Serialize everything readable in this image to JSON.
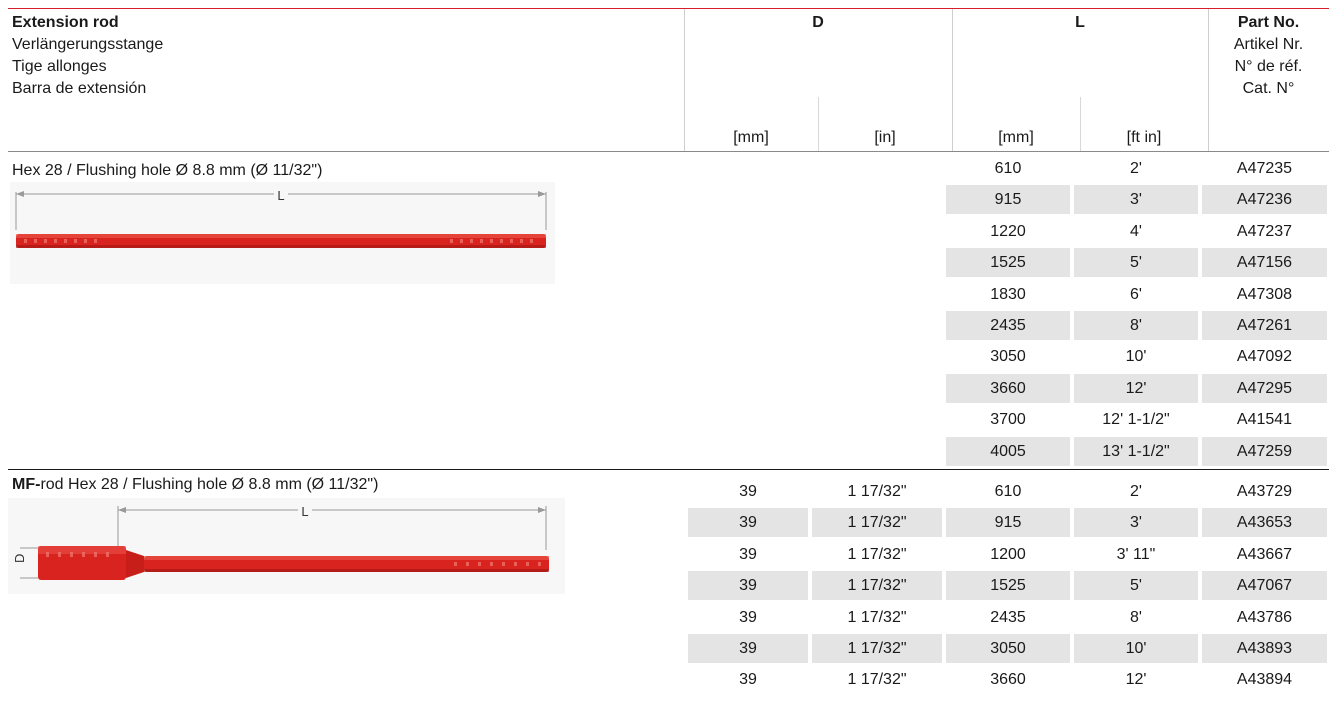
{
  "header": {
    "title": [
      "Extension rod",
      "Verlängerungsstange",
      "Tige allonges",
      "Barra de extensión"
    ],
    "col_D": "D",
    "col_L": "L",
    "part": [
      "Part No.",
      "Artikel Nr.",
      "N° de réf.",
      "Cat. N°"
    ],
    "units": [
      "[mm]",
      "[in]",
      "[mm]",
      "[ft in]"
    ]
  },
  "sections": [
    {
      "title_bold": "",
      "title": "Hex 28 / Flushing hole Ø 8.8 mm (Ø 11/32\")",
      "image_label": "L",
      "rows": [
        {
          "d_mm": "",
          "d_in": "",
          "l_mm": "610",
          "l_ft": "2'",
          "part": "A47235"
        },
        {
          "d_mm": "",
          "d_in": "",
          "l_mm": "915",
          "l_ft": "3'",
          "part": "A47236"
        },
        {
          "d_mm": "",
          "d_in": "",
          "l_mm": "1220",
          "l_ft": "4'",
          "part": "A47237"
        },
        {
          "d_mm": "",
          "d_in": "",
          "l_mm": "1525",
          "l_ft": "5'",
          "part": "A47156"
        },
        {
          "d_mm": "",
          "d_in": "",
          "l_mm": "1830",
          "l_ft": "6'",
          "part": "A47308"
        },
        {
          "d_mm": "",
          "d_in": "",
          "l_mm": "2435",
          "l_ft": "8'",
          "part": "A47261"
        },
        {
          "d_mm": "",
          "d_in": "",
          "l_mm": "3050",
          "l_ft": "10'",
          "part": "A47092"
        },
        {
          "d_mm": "",
          "d_in": "",
          "l_mm": "3660",
          "l_ft": "12'",
          "part": "A47295"
        },
        {
          "d_mm": "",
          "d_in": "",
          "l_mm": "3700",
          "l_ft": "12' 1-1/2\"",
          "part": "A41541"
        },
        {
          "d_mm": "",
          "d_in": "",
          "l_mm": "4005",
          "l_ft": "13' 1-1/2\"",
          "part": "A47259"
        }
      ]
    },
    {
      "title_bold": "MF-",
      "title": "rod Hex 28 / Flushing hole Ø 8.8 mm (Ø 11/32\")",
      "image_label": "L",
      "image_label_d": "D",
      "rows": [
        {
          "d_mm": "39",
          "d_in": "1 17/32\"",
          "l_mm": "610",
          "l_ft": "2'",
          "part": "A43729"
        },
        {
          "d_mm": "39",
          "d_in": "1 17/32\"",
          "l_mm": "915",
          "l_ft": "3'",
          "part": "A43653"
        },
        {
          "d_mm": "39",
          "d_in": "1 17/32\"",
          "l_mm": "1200",
          "l_ft": "3' 11\"",
          "part": "A43667"
        },
        {
          "d_mm": "39",
          "d_in": "1 17/32\"",
          "l_mm": "1525",
          "l_ft": "5'",
          "part": "A47067"
        },
        {
          "d_mm": "39",
          "d_in": "1 17/32\"",
          "l_mm": "2435",
          "l_ft": "8'",
          "part": "A43786"
        },
        {
          "d_mm": "39",
          "d_in": "1 17/32\"",
          "l_mm": "3050",
          "l_ft": "10'",
          "part": "A43893"
        },
        {
          "d_mm": "39",
          "d_in": "1 17/32\"",
          "l_mm": "3660",
          "l_ft": "12'",
          "part": "A43894"
        }
      ]
    }
  ],
  "colors": {
    "accent": "#d4202a",
    "rod": "#d8231f",
    "shade": "#e4e4e4"
  }
}
